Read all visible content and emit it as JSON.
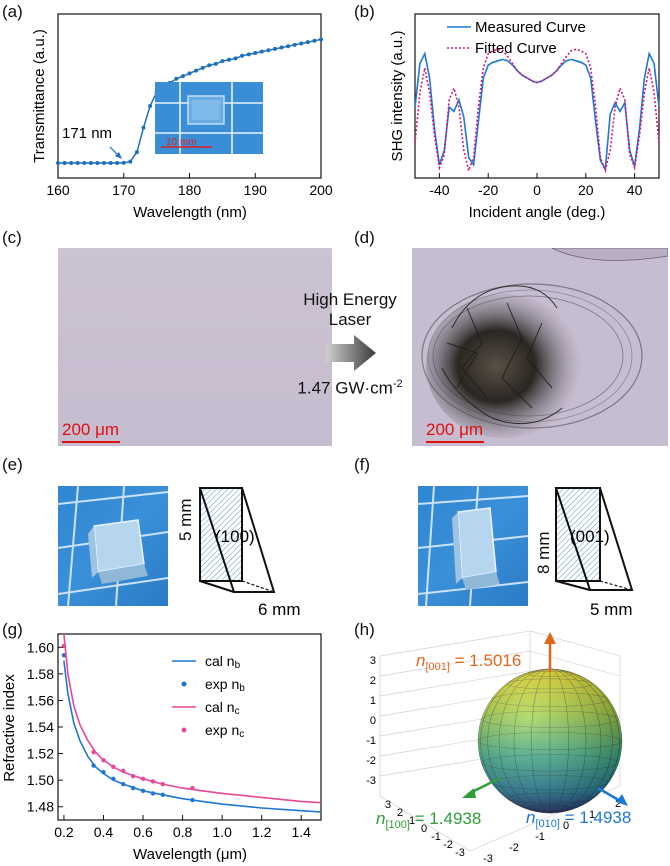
{
  "panels": {
    "a": "(a)",
    "b": "(b)",
    "c": "(c)",
    "d": "(d)",
    "e": "(e)",
    "f": "(f)",
    "g": "(g)",
    "h": "(h)"
  },
  "chart_data": [
    {
      "id": "a",
      "type": "line",
      "xlabel": "Wavelength (nm)",
      "ylabel": "Transmittance (a.u.)",
      "xlim": [
        160,
        200
      ],
      "xticks": [
        "160",
        "170",
        "180",
        "190",
        "200"
      ],
      "x": [
        160,
        161,
        162,
        163,
        164,
        165,
        166,
        167,
        168,
        169,
        170,
        171,
        172,
        173,
        174,
        175,
        176,
        177,
        178,
        179,
        180,
        181,
        182,
        183,
        184,
        185,
        186,
        187,
        188,
        189,
        190,
        191,
        192,
        193,
        194,
        195,
        196,
        197,
        198,
        199,
        200
      ],
      "y": [
        0.02,
        0.02,
        0.02,
        0.02,
        0.02,
        0.02,
        0.02,
        0.02,
        0.02,
        0.02,
        0.021,
        0.03,
        0.1,
        0.28,
        0.44,
        0.54,
        0.58,
        0.61,
        0.64,
        0.66,
        0.68,
        0.7,
        0.72,
        0.74,
        0.75,
        0.77,
        0.78,
        0.79,
        0.81,
        0.82,
        0.83,
        0.84,
        0.85,
        0.86,
        0.87,
        0.88,
        0.89,
        0.9,
        0.91,
        0.92,
        0.93
      ],
      "color": "#1f6fbf",
      "annotation": "171 nm",
      "inset_scale": "10 mm"
    },
    {
      "id": "b",
      "type": "line",
      "xlabel": "Incident angle (deg.)",
      "ylabel": "SHG intensity (a.u.)",
      "xlim": [
        -50,
        50
      ],
      "xticks": [
        "-40",
        "-20",
        "0",
        "20",
        "40"
      ],
      "series": [
        {
          "name": "Measured Curve",
          "color": "#1f77d4",
          "x": [
            -50,
            -48,
            -46,
            -44,
            -42,
            -40,
            -38,
            -36,
            -34,
            -32,
            -30,
            -28,
            -26,
            -24,
            -22,
            -20,
            -18,
            -16,
            -14,
            -12,
            -10,
            -8,
            -6,
            -4,
            -2,
            0,
            2,
            4,
            6,
            8,
            10,
            12,
            14,
            16,
            18,
            20,
            22,
            24,
            26,
            28,
            30,
            32,
            34,
            36,
            38,
            40,
            42,
            44,
            46,
            48,
            50
          ],
          "y": [
            0.45,
            0.75,
            0.82,
            0.65,
            0.3,
            0.05,
            0.15,
            0.45,
            0.42,
            0.5,
            0.38,
            0.1,
            0.05,
            0.35,
            0.65,
            0.74,
            0.76,
            0.77,
            0.78,
            0.77,
            0.74,
            0.7,
            0.67,
            0.65,
            0.63,
            0.62,
            0.63,
            0.65,
            0.67,
            0.7,
            0.74,
            0.77,
            0.78,
            0.77,
            0.76,
            0.74,
            0.65,
            0.35,
            0.08,
            0.02,
            0.4,
            0.48,
            0.42,
            0.48,
            0.15,
            0.04,
            0.3,
            0.65,
            0.82,
            0.75,
            0.45
          ]
        },
        {
          "name": "Fitted Curve",
          "color": "#d6157a",
          "x": [
            -50,
            -48,
            -46,
            -44,
            -42,
            -40,
            -38,
            -36,
            -34,
            -32,
            -30,
            -28,
            -26,
            -24,
            -22,
            -20,
            -18,
            -16,
            -14,
            -12,
            -10,
            -8,
            -6,
            -4,
            -2,
            0,
            2,
            4,
            6,
            8,
            10,
            12,
            14,
            16,
            18,
            20,
            22,
            24,
            26,
            28,
            30,
            32,
            34,
            36,
            38,
            40,
            42,
            44,
            46,
            48,
            50
          ],
          "y": [
            0.2,
            0.55,
            0.72,
            0.55,
            0.25,
            0.03,
            0.12,
            0.5,
            0.58,
            0.45,
            0.15,
            0.01,
            0.1,
            0.45,
            0.72,
            0.82,
            0.84,
            0.85,
            0.84,
            0.8,
            0.75,
            0.7,
            0.67,
            0.65,
            0.63,
            0.62,
            0.63,
            0.65,
            0.67,
            0.7,
            0.75,
            0.8,
            0.84,
            0.85,
            0.84,
            0.82,
            0.72,
            0.45,
            0.1,
            0.01,
            0.15,
            0.45,
            0.58,
            0.5,
            0.12,
            0.03,
            0.25,
            0.55,
            0.72,
            0.55,
            0.2
          ]
        }
      ]
    },
    {
      "id": "g",
      "type": "line",
      "xlabel": "Wavelength (μm)",
      "ylabel": "Refractive index",
      "xlim": [
        0.17,
        1.5
      ],
      "ylim": [
        1.47,
        1.61
      ],
      "xticks": [
        "0.2",
        "0.4",
        "0.6",
        "0.8",
        "1.0",
        "1.2",
        "1.4"
      ],
      "yticks": [
        "1.48",
        "1.50",
        "1.52",
        "1.54",
        "1.56",
        "1.58",
        "1.60"
      ],
      "series": [
        {
          "name": "cal n_b",
          "kind": "line",
          "color": "#1f77d4",
          "x": [
            0.2,
            0.22,
            0.25,
            0.28,
            0.32,
            0.36,
            0.4,
            0.45,
            0.5,
            0.6,
            0.7,
            0.8,
            0.9,
            1.0,
            1.2,
            1.4,
            1.5
          ],
          "y": [
            1.59,
            1.565,
            1.543,
            1.53,
            1.518,
            1.51,
            1.505,
            1.5,
            1.497,
            1.492,
            1.489,
            1.486,
            1.484,
            1.482,
            1.479,
            1.477,
            1.476
          ]
        },
        {
          "name": "exp n_b",
          "kind": "scatter",
          "color": "#1f77d4",
          "x": [
            0.2,
            0.35,
            0.4,
            0.45,
            0.5,
            0.55,
            0.6,
            0.65,
            0.7,
            0.85
          ],
          "y": [
            1.594,
            1.511,
            1.506,
            1.501,
            1.497,
            1.494,
            1.492,
            1.49,
            1.489,
            1.485
          ]
        },
        {
          "name": "cal n_c",
          "kind": "line",
          "color": "#e8479a",
          "x": [
            0.2,
            0.22,
            0.25,
            0.28,
            0.32,
            0.36,
            0.4,
            0.45,
            0.5,
            0.6,
            0.7,
            0.8,
            0.9,
            1.0,
            1.2,
            1.4,
            1.5
          ],
          "y": [
            1.61,
            1.58,
            1.556,
            1.542,
            1.53,
            1.521,
            1.515,
            1.51,
            1.506,
            1.501,
            1.497,
            1.494,
            1.492,
            1.49,
            1.487,
            1.484,
            1.483
          ]
        },
        {
          "name": "exp n_c",
          "kind": "scatter",
          "color": "#e8479a",
          "x": [
            0.2,
            0.35,
            0.4,
            0.45,
            0.5,
            0.55,
            0.6,
            0.65,
            0.7,
            0.85
          ],
          "y": [
            1.601,
            1.521,
            1.515,
            1.51,
            1.507,
            1.503,
            1.501,
            1.499,
            1.497,
            1.494
          ]
        }
      ],
      "legend": [
        "cal n",
        "exp n",
        "cal n",
        "exp n"
      ],
      "legend_sub": [
        "b",
        "b",
        "c",
        "c"
      ]
    }
  ],
  "panel_c": {
    "scale": "200 μm"
  },
  "panel_d": {
    "scale": "200 μm"
  },
  "arrow": {
    "line1": "High Energy",
    "line2": "Laser",
    "value": "1.47 GW·cm",
    "exp": "-2"
  },
  "panel_e": {
    "face": "(100)",
    "dim_v": "5 mm",
    "dim_h": "6 mm"
  },
  "panel_f": {
    "face": "(001)",
    "dim_v": "8 mm",
    "dim_h": "5 mm"
  },
  "panel_h": {
    "n001_sym": "n",
    "n001_sub": "[001]",
    "n001_val": " = 1.5016",
    "n100_sym": "n",
    "n100_sub": "[100]",
    "n100_val": " = 1.4938",
    "n010_sym": "n",
    "n010_sub": "[010]",
    "n010_val": " = 1.4938",
    "zticks": [
      "3",
      "2",
      "1",
      "0",
      "-1",
      "-2",
      "-3"
    ],
    "xticks": [
      "3",
      "2",
      "1",
      "0",
      "-1",
      "-2",
      "-3"
    ],
    "yticks": [
      "-3",
      "-2",
      "-1",
      "0",
      "1",
      "2"
    ],
    "colors": {
      "n001": "#e0661b",
      "n100": "#2e9e3a",
      "n010": "#1f77d4"
    }
  }
}
